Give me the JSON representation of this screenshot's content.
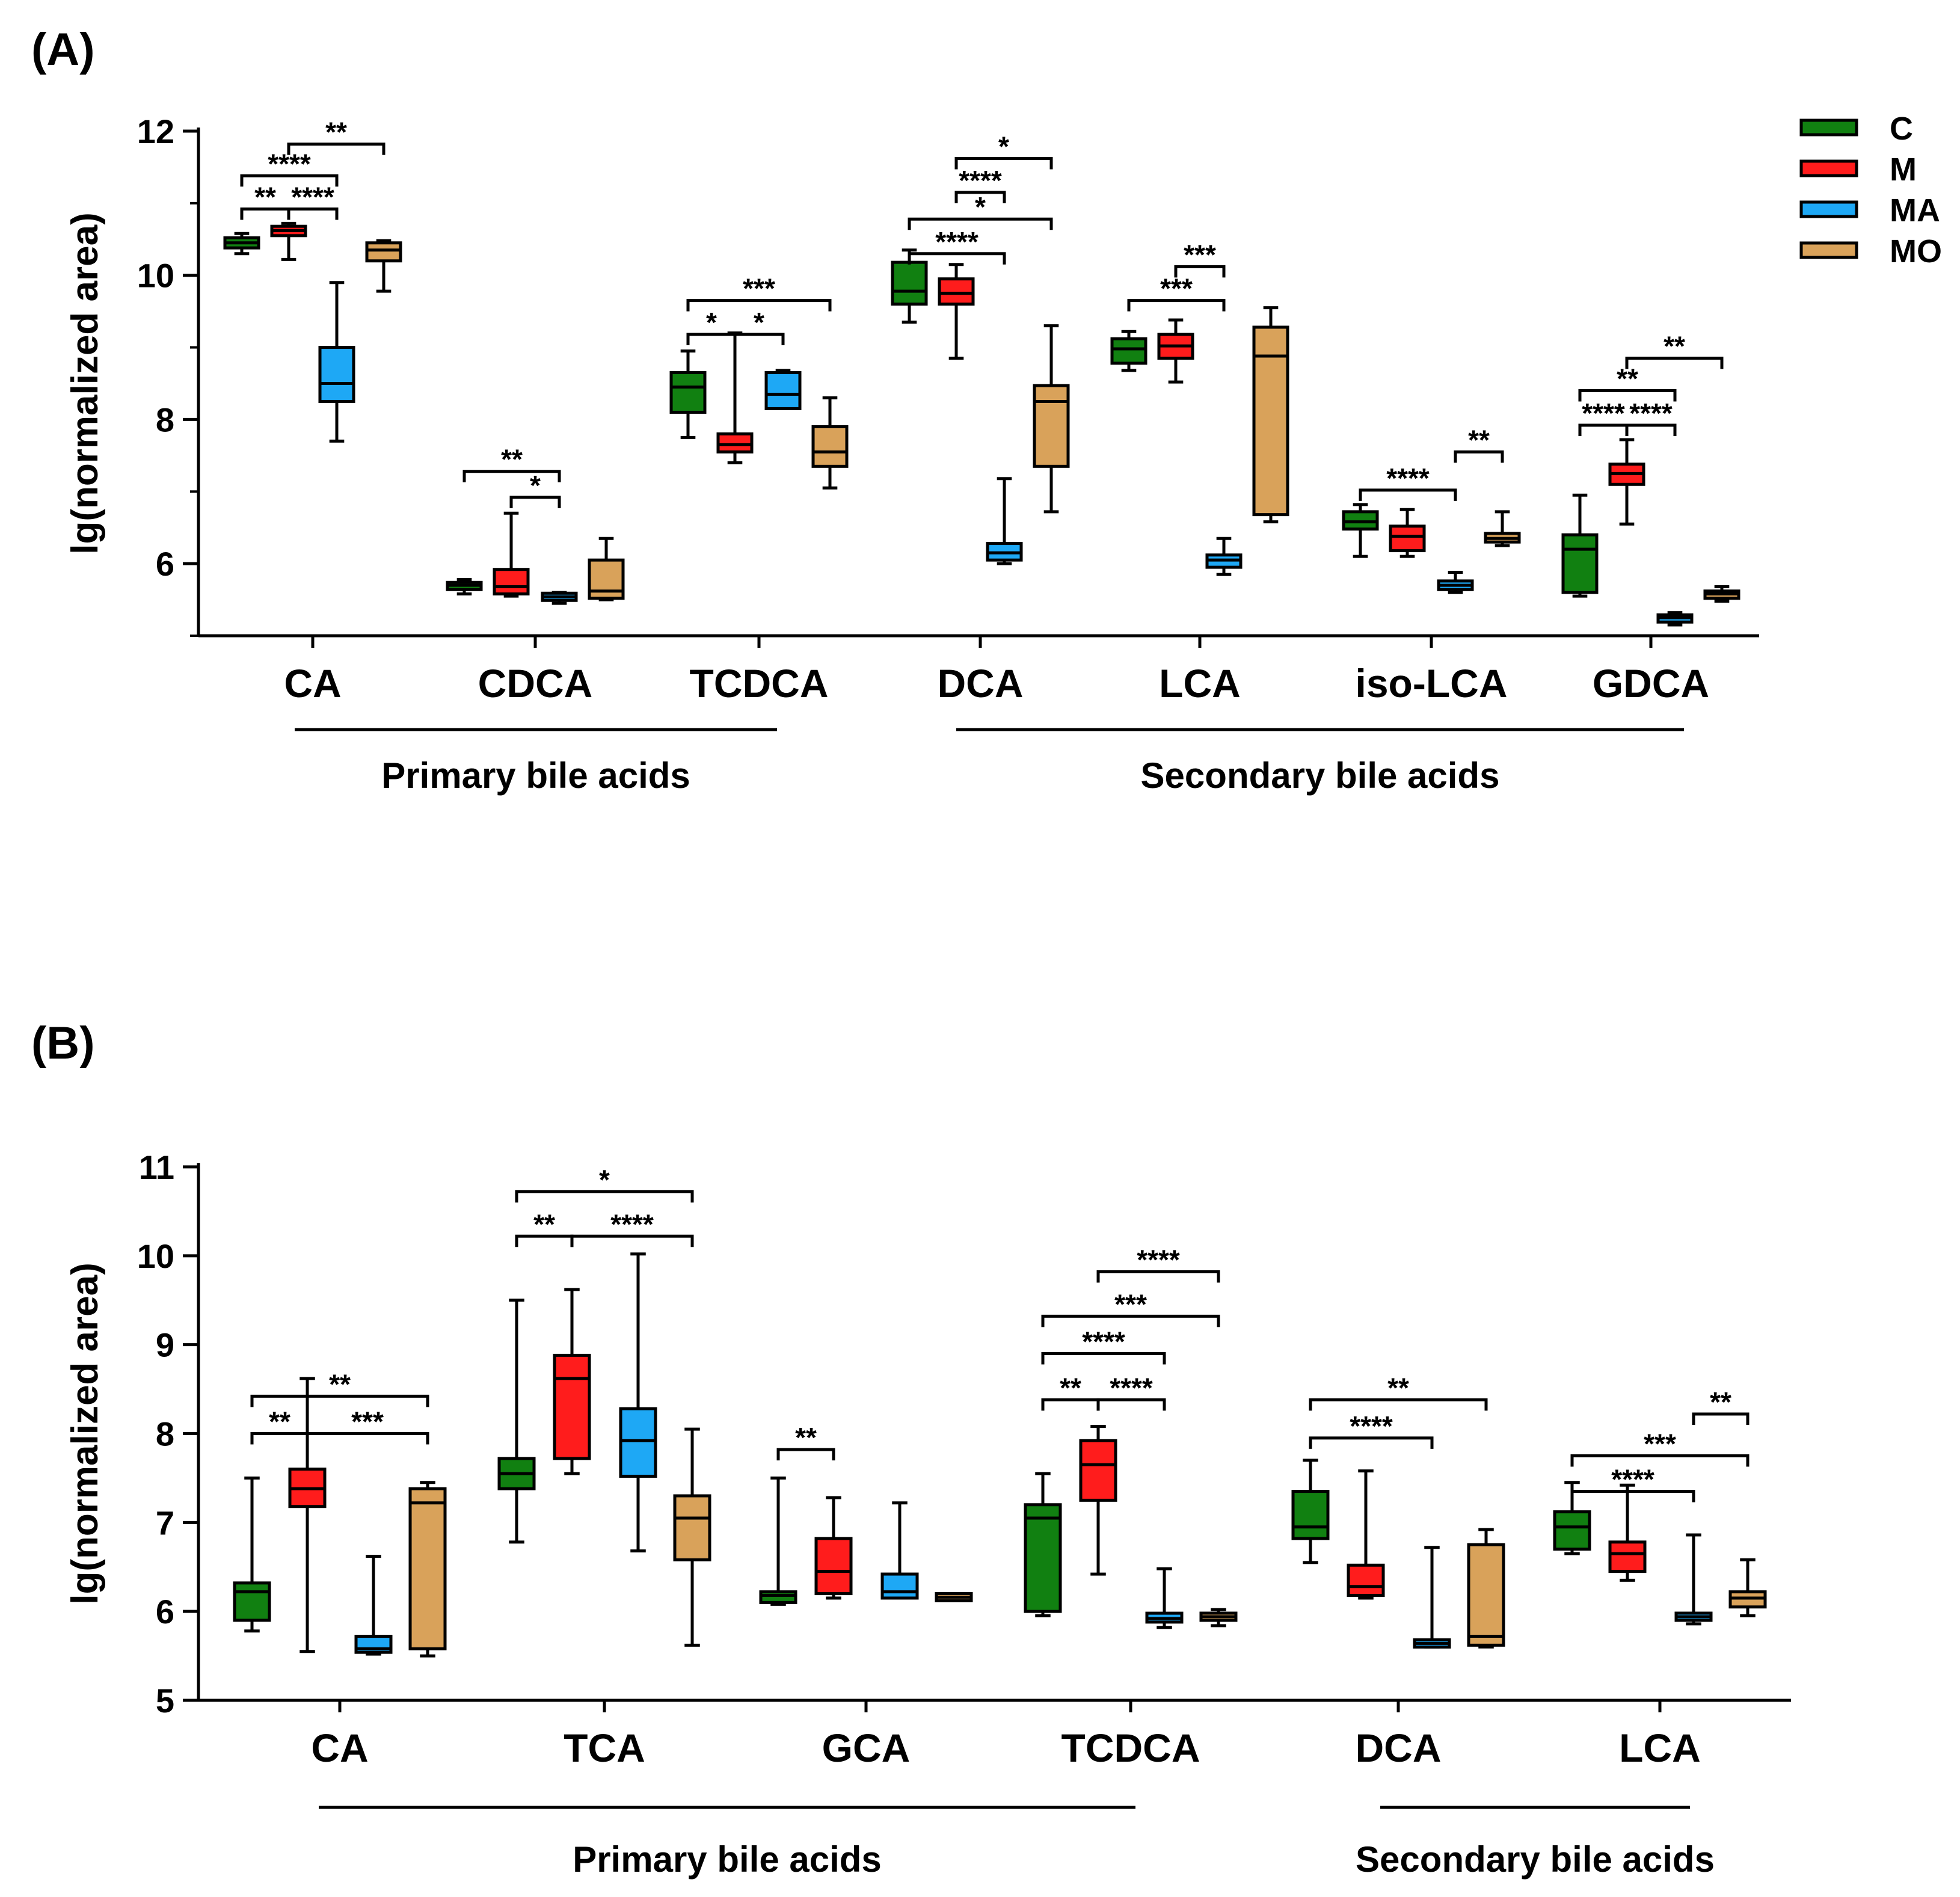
{
  "chart_data": [
    {
      "panel": "(A)",
      "type": "box",
      "ylabel": "lg(normalized area)",
      "ylim": [
        5,
        12
      ],
      "yticks": [
        6,
        8,
        10,
        12
      ],
      "legend": {
        "position": "top-right",
        "entries": [
          {
            "name": "C",
            "color": "#118011"
          },
          {
            "name": "M",
            "color": "#ff1c1c"
          },
          {
            "name": "MA",
            "color": "#1ea8f5"
          },
          {
            "name": "MO",
            "color": "#d9a25a"
          }
        ]
      },
      "categories": [
        "CA",
        "CDCA",
        "TCDCA",
        "DCA",
        "LCA",
        "iso-LCA",
        "GDCA"
      ],
      "groups": [
        {
          "label": "Primary bile acids",
          "categories": [
            "CA",
            "CDCA",
            "TCDCA"
          ]
        },
        {
          "label": "Secondary bile acids",
          "categories": [
            "DCA",
            "LCA",
            "iso-LCA",
            "GDCA"
          ]
        }
      ],
      "boxes": {
        "CA": {
          "C": [
            10.3,
            10.38,
            10.45,
            10.52,
            10.58
          ],
          "M": [
            10.22,
            10.55,
            10.62,
            10.68,
            10.72
          ],
          "MA": [
            7.7,
            8.25,
            8.5,
            9.0,
            9.9
          ],
          "MO": [
            9.78,
            10.2,
            10.35,
            10.45,
            10.48
          ]
        },
        "CDCA": {
          "C": [
            5.58,
            5.64,
            5.7,
            5.74,
            5.78
          ],
          "M": [
            5.55,
            5.58,
            5.68,
            5.92,
            6.7
          ],
          "MA": [
            5.45,
            5.5,
            5.54,
            5.58,
            5.6
          ],
          "MO": [
            5.5,
            5.52,
            5.62,
            6.05,
            6.35
          ]
        },
        "TCDCA": {
          "C": [
            7.75,
            8.1,
            8.45,
            8.65,
            8.95
          ],
          "M": [
            7.4,
            7.55,
            7.65,
            7.8,
            9.2
          ],
          "MA": [
            8.15,
            8.15,
            8.35,
            8.65,
            8.68
          ],
          "MO": [
            7.05,
            7.35,
            7.55,
            7.9,
            8.3
          ]
        },
        "DCA": {
          "C": [
            9.35,
            9.6,
            9.78,
            10.18,
            10.35
          ],
          "M": [
            8.85,
            9.6,
            9.75,
            9.95,
            10.15
          ],
          "MA": [
            6.0,
            6.05,
            6.15,
            6.28,
            7.18
          ],
          "MO": [
            6.72,
            7.35,
            8.25,
            8.47,
            9.3
          ]
        },
        "LCA": {
          "C": [
            8.68,
            8.78,
            8.98,
            9.12,
            9.22
          ],
          "M": [
            8.52,
            8.85,
            9.02,
            9.18,
            9.38
          ],
          "MA": [
            5.85,
            5.95,
            6.05,
            6.12,
            6.35
          ],
          "MO": [
            6.58,
            6.68,
            8.88,
            9.28,
            9.55
          ]
        },
        "iso-LCA": {
          "C": [
            6.1,
            6.48,
            6.58,
            6.72,
            6.82
          ],
          "M": [
            6.1,
            6.18,
            6.38,
            6.52,
            6.75
          ],
          "MA": [
            5.6,
            5.64,
            5.7,
            5.76,
            5.88
          ],
          "MO": [
            6.25,
            6.3,
            6.35,
            6.42,
            6.72
          ]
        },
        "GDCA": {
          "C": [
            5.55,
            5.6,
            6.2,
            6.4,
            6.95
          ],
          "M": [
            6.55,
            7.1,
            7.25,
            7.38,
            7.72
          ],
          "MA": [
            5.15,
            5.2,
            5.25,
            5.28,
            5.32
          ],
          "MO": [
            5.48,
            5.52,
            5.58,
            5.62,
            5.68
          ]
        }
      },
      "significance": [
        {
          "category": "CA",
          "from": "M",
          "to": "MO",
          "y": 11.82,
          "label": "**"
        },
        {
          "category": "CA",
          "from": "C",
          "to": "MA",
          "y": 11.38,
          "label": "****"
        },
        {
          "category": "CA",
          "from": "C",
          "to": "M",
          "y": 10.92,
          "label": "**"
        },
        {
          "category": "CA",
          "from": "M",
          "to": "MA",
          "y": 10.92,
          "label": "****"
        },
        {
          "category": "CDCA",
          "from": "C",
          "to": "MA",
          "y": 7.28,
          "label": "**"
        },
        {
          "category": "CDCA",
          "from": "M",
          "to": "MA",
          "y": 6.92,
          "label": "*"
        },
        {
          "category": "TCDCA",
          "from": "C",
          "to": "MO",
          "y": 9.65,
          "label": "***"
        },
        {
          "category": "TCDCA",
          "from": "C",
          "to": "M",
          "y": 9.18,
          "label": "*"
        },
        {
          "category": "TCDCA",
          "from": "M",
          "to": "MA",
          "y": 9.18,
          "label": "*"
        },
        {
          "category": "DCA",
          "from": "M",
          "to": "MO",
          "y": 11.62,
          "label": "*"
        },
        {
          "category": "DCA",
          "from": "M",
          "to": "MA",
          "y": 11.15,
          "label": "****"
        },
        {
          "category": "DCA",
          "from": "C",
          "to": "MO",
          "y": 10.78,
          "label": "*"
        },
        {
          "category": "DCA",
          "from": "C",
          "to": "MA",
          "y": 10.3,
          "label": "****"
        },
        {
          "category": "LCA",
          "from": "M",
          "to": "MA",
          "y": 10.12,
          "label": "***"
        },
        {
          "category": "LCA",
          "from": "C",
          "to": "MA",
          "y": 9.65,
          "label": "***"
        },
        {
          "category": "iso-LCA",
          "from": "MA",
          "to": "MO",
          "y": 7.55,
          "label": "**"
        },
        {
          "category": "iso-LCA",
          "from": "C",
          "to": "MA",
          "y": 7.02,
          "label": "****"
        },
        {
          "category": "GDCA",
          "from": "M",
          "to": "MO",
          "y": 8.85,
          "label": "**"
        },
        {
          "category": "GDCA",
          "from": "C",
          "to": "MA",
          "y": 8.4,
          "label": "**"
        },
        {
          "category": "GDCA",
          "from": "C",
          "to": "M",
          "y": 7.92,
          "label": "****"
        },
        {
          "category": "GDCA",
          "from": "M",
          "to": "MA",
          "y": 7.92,
          "label": "****"
        }
      ]
    },
    {
      "panel": "(B)",
      "type": "box",
      "ylabel": "lg(normalized area)",
      "ylim": [
        5,
        11
      ],
      "yticks": [
        5,
        6,
        7,
        8,
        9,
        10,
        11
      ],
      "categories": [
        "CA",
        "TCA",
        "GCA",
        "TCDCA",
        "DCA",
        "LCA"
      ],
      "groups": [
        {
          "label": "Primary bile acids",
          "categories": [
            "CA",
            "TCA",
            "GCA",
            "TCDCA"
          ]
        },
        {
          "label": "Secondary bile acids",
          "categories": [
            "DCA",
            "LCA"
          ]
        }
      ],
      "boxes": {
        "CA": {
          "C": [
            5.78,
            5.9,
            6.22,
            6.32,
            7.5
          ],
          "M": [
            5.55,
            7.18,
            7.38,
            7.6,
            8.62
          ],
          "MA": [
            5.52,
            5.54,
            5.58,
            5.72,
            6.62
          ],
          "MO": [
            5.5,
            5.58,
            7.22,
            7.38,
            7.45
          ]
        },
        "TCA": {
          "C": [
            6.78,
            7.38,
            7.55,
            7.72,
            9.5
          ],
          "M": [
            7.55,
            7.72,
            8.62,
            8.88,
            9.62
          ],
          "MA": [
            6.68,
            7.52,
            7.92,
            8.28,
            10.02
          ],
          "MO": [
            5.62,
            6.58,
            7.05,
            7.3,
            8.05
          ]
        },
        "GCA": {
          "C": [
            6.08,
            6.1,
            6.18,
            6.22,
            7.5
          ],
          "M": [
            6.15,
            6.2,
            6.45,
            6.82,
            7.28
          ],
          "MA": [
            6.15,
            6.15,
            6.22,
            6.42,
            7.22
          ],
          "MO": [
            6.14,
            6.14,
            6.16,
            6.18,
            6.2
          ]
        },
        "TCDCA": {
          "C": [
            5.95,
            6.0,
            7.05,
            7.2,
            7.55
          ],
          "M": [
            6.42,
            7.25,
            7.65,
            7.92,
            8.08
          ],
          "MA": [
            5.82,
            5.88,
            5.92,
            5.98,
            6.48
          ],
          "MO": [
            5.84,
            5.9,
            5.94,
            5.98,
            6.02
          ]
        },
        "DCA": {
          "C": [
            6.55,
            6.82,
            6.95,
            7.35,
            7.7
          ],
          "M": [
            6.15,
            6.18,
            6.28,
            6.52,
            7.58
          ],
          "MA": [
            5.6,
            5.62,
            5.64,
            5.66,
            6.72
          ],
          "MO": [
            5.6,
            5.62,
            5.72,
            6.75,
            6.92
          ]
        },
        "LCA": {
          "C": [
            6.65,
            6.7,
            6.95,
            7.12,
            7.45
          ],
          "M": [
            6.35,
            6.45,
            6.65,
            6.78,
            7.42
          ],
          "MA": [
            5.86,
            5.92,
            5.94,
            5.96,
            6.86
          ],
          "MO": [
            5.95,
            6.05,
            6.15,
            6.22,
            6.58
          ]
        }
      },
      "significance": [
        {
          "category": "CA",
          "from": "C",
          "to": "MO",
          "y": 8.42,
          "label": "**"
        },
        {
          "category": "CA",
          "from": "C",
          "to": "M",
          "y": 8.0,
          "label": "**"
        },
        {
          "category": "CA",
          "from": "M",
          "to": "MO",
          "y": 8.0,
          "label": "***"
        },
        {
          "category": "TCA",
          "from": "C",
          "to": "MO",
          "y": 10.72,
          "label": "*"
        },
        {
          "category": "TCA",
          "from": "C",
          "to": "M",
          "y": 10.22,
          "label": "**"
        },
        {
          "category": "TCA",
          "from": "M",
          "to": "MO",
          "y": 10.22,
          "label": "****"
        },
        {
          "category": "GCA",
          "from": "C",
          "to": "M",
          "y": 7.82,
          "label": "**"
        },
        {
          "category": "TCDCA",
          "from": "M",
          "to": "MO",
          "y": 9.82,
          "label": "****"
        },
        {
          "category": "TCDCA",
          "from": "C",
          "to": "MO",
          "y": 9.32,
          "label": "***"
        },
        {
          "category": "TCDCA",
          "from": "C",
          "to": "MA",
          "y": 8.9,
          "label": "****"
        },
        {
          "category": "TCDCA",
          "from": "C",
          "to": "M",
          "y": 8.38,
          "label": "**"
        },
        {
          "category": "TCDCA",
          "from": "M",
          "to": "MA",
          "y": 8.38,
          "label": "****"
        },
        {
          "category": "DCA",
          "from": "C",
          "to": "MO",
          "y": 8.38,
          "label": "**"
        },
        {
          "category": "DCA",
          "from": "C",
          "to": "MA",
          "y": 7.95,
          "label": "****"
        },
        {
          "category": "LCA",
          "from": "MA",
          "to": "MO",
          "y": 8.22,
          "label": "**"
        },
        {
          "category": "LCA",
          "from": "C",
          "to": "MO",
          "y": 7.75,
          "label": "***"
        },
        {
          "category": "LCA",
          "from": "C",
          "to": "MA",
          "y": 7.35,
          "label": "****"
        }
      ]
    }
  ]
}
